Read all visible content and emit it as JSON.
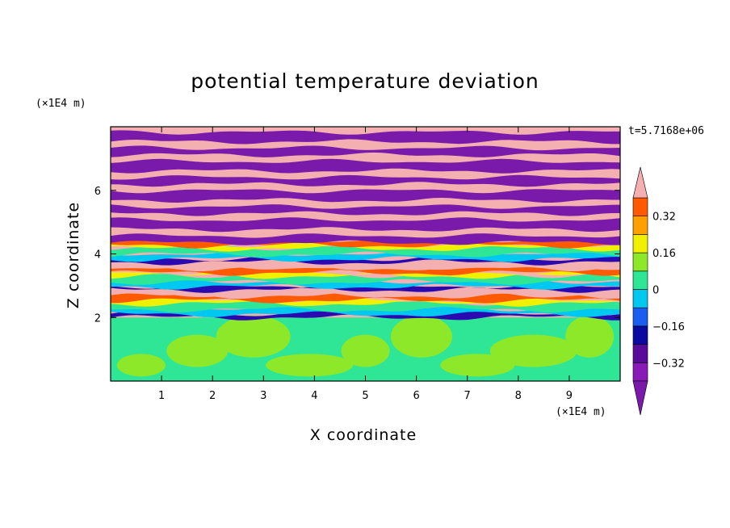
{
  "chart_data": {
    "type": "heatmap",
    "title": "potential temperature deviation",
    "xlabel": "X coordinate",
    "ylabel": "Z coordinate",
    "x_unit": "(×1E4 m)",
    "y_unit": "(×1E4 m)",
    "time_label": "t=5.7168e+06",
    "xlim": [
      0,
      10
    ],
    "ylim": [
      0,
      8
    ],
    "x_ticks": [
      1,
      2,
      3,
      4,
      5,
      6,
      7,
      8,
      9
    ],
    "y_ticks": [
      2,
      4,
      6
    ],
    "grid": false,
    "colorbar": {
      "levels": [
        -0.4,
        -0.32,
        -0.24,
        -0.16,
        -0.08,
        0,
        0.08,
        0.16,
        0.24,
        0.32,
        0.4
      ],
      "tick_labels": [
        "0.32",
        "0.16",
        "0",
        "−0.16",
        "−0.32"
      ],
      "tick_values": [
        0.32,
        0.16,
        0,
        -0.16,
        -0.32
      ],
      "colors_low_to_high": [
        "#8a1ab8",
        "#5a0a9a",
        "#0a0aa0",
        "#1a5ef0",
        "#00c8f0",
        "#2ee696",
        "#8ee82a",
        "#f0f000",
        "#ffa000",
        "#ff5a00",
        "#f02828"
      ],
      "extend_low_color": "#7a1aaa",
      "extend_high_color": "#f4b0b0"
    },
    "description_layers": {
      "upper_band_colors": [
        "#f4b0b0",
        "#7a1aaa"
      ],
      "mid_band_colors": [
        "#2a0ab0",
        "#00c8f0",
        "#2ee696",
        "#f0f000",
        "#ff5a00",
        "#f4b0b0"
      ],
      "lower_band_colors": [
        "#2ee696",
        "#8ee82a"
      ]
    }
  }
}
